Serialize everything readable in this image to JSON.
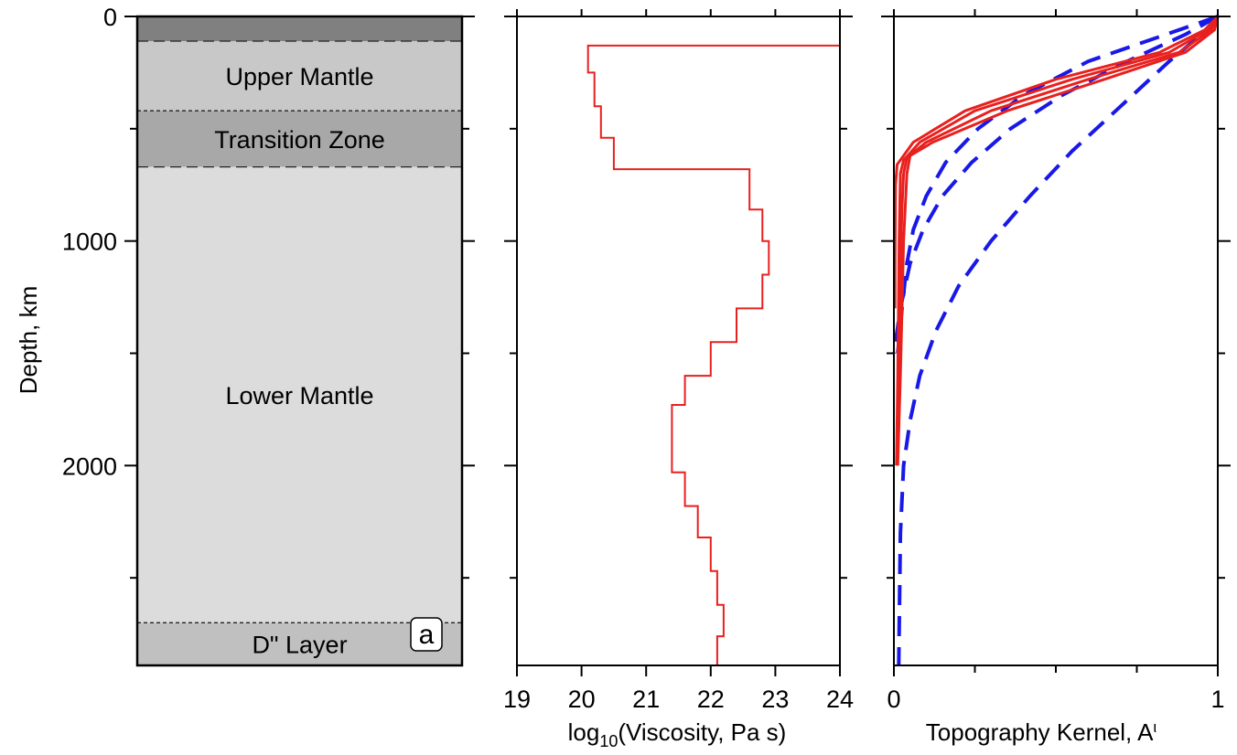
{
  "chart_data": [
    {
      "type": "table",
      "panel_label": "a",
      "ylabel": "Depth, km",
      "ylim": [
        0,
        2890
      ],
      "yticks": [
        "0",
        "1000",
        "2000"
      ],
      "layers": [
        {
          "name": "",
          "top": 0,
          "bottom": 110,
          "color": "#808080"
        },
        {
          "name": "Upper Mantle",
          "top": 110,
          "bottom": 420,
          "color": "#c8c8c8"
        },
        {
          "name": "Transition Zone",
          "top": 420,
          "bottom": 670,
          "color": "#a8a8a8"
        },
        {
          "name": "Lower Mantle",
          "top": 670,
          "bottom": 2700,
          "color": "#dcdcdc"
        },
        {
          "name": "D\" Layer",
          "top": 2700,
          "bottom": 2890,
          "color": "#c0c0c0"
        }
      ]
    },
    {
      "type": "line",
      "xlabel": "log",
      "xlabel_sub": "10",
      "xlabel_rest": "(Viscosity, Pa s)",
      "xlim": [
        19,
        24
      ],
      "xticks": [
        "19",
        "20",
        "21",
        "22",
        "23",
        "24"
      ],
      "ylim": [
        0,
        2890
      ],
      "x": [
        24,
        20.1,
        20.1,
        20.2,
        20.2,
        20.3,
        20.3,
        20.5,
        20.5,
        22.6,
        22.6,
        22.8,
        22.8,
        22.9,
        22.9,
        22.8,
        22.8,
        22.4,
        22.4,
        22.0,
        22.0,
        21.6,
        21.6,
        21.4,
        21.4,
        21.6,
        21.6,
        21.8,
        21.8,
        22.0,
        22.0,
        22.1,
        22.1,
        22.2,
        22.2,
        22.1,
        22.1
      ],
      "y": [
        130,
        130,
        250,
        250,
        400,
        400,
        540,
        540,
        680,
        680,
        860,
        860,
        1000,
        1000,
        1150,
        1150,
        1300,
        1300,
        1450,
        1450,
        1600,
        1600,
        1730,
        1730,
        2030,
        2030,
        2180,
        2180,
        2320,
        2320,
        2470,
        2470,
        2620,
        2620,
        2760,
        2760,
        2890
      ],
      "color": "#e8201e"
    },
    {
      "type": "line",
      "xlabel": "Topography Kernel, A",
      "xlabel_sup": "ι",
      "xlim": [
        0,
        1
      ],
      "xticks": [
        "0",
        "1"
      ],
      "ylim": [
        0,
        2890
      ],
      "solid_color": "#e8201e",
      "dashed_color": "#1818e8",
      "solid_series": [
        {
          "x": [
            1.0,
            0.97,
            0.85,
            0.55,
            0.25,
            0.08,
            0.03,
            0.02,
            0.018,
            0.016,
            0.014,
            0.012,
            0.008
          ],
          "y": [
            0,
            60,
            160,
            280,
            420,
            560,
            640,
            700,
            850,
            1000,
            1300,
            1600,
            2000
          ]
        },
        {
          "x": [
            1.0,
            0.98,
            0.88,
            0.6,
            0.3,
            0.1,
            0.04,
            0.03,
            0.025,
            0.022,
            0.018,
            0.015,
            0.01
          ],
          "y": [
            0,
            60,
            160,
            280,
            420,
            560,
            630,
            700,
            850,
            1000,
            1300,
            1600,
            2000
          ]
        },
        {
          "x": [
            1.0,
            0.99,
            0.9,
            0.65,
            0.35,
            0.12,
            0.05,
            0.04,
            0.035,
            0.03,
            0.025,
            0.02,
            0.012
          ],
          "y": [
            0,
            60,
            160,
            280,
            420,
            560,
            620,
            700,
            850,
            1000,
            1300,
            1600,
            2000
          ]
        },
        {
          "x": [
            1.0,
            0.96,
            0.82,
            0.5,
            0.22,
            0.06,
            0.01,
            0.005,
            0.004,
            0.003
          ],
          "y": [
            0,
            60,
            160,
            280,
            420,
            560,
            660,
            750,
            1000,
            1300
          ]
        }
      ],
      "dashed_series": [
        {
          "x": [
            1.0,
            0.9,
            0.72,
            0.52,
            0.36,
            0.24,
            0.15,
            0.09,
            0.05,
            0.02,
            0.0
          ],
          "y": [
            0,
            80,
            200,
            350,
            500,
            650,
            800,
            950,
            1100,
            1300,
            1500
          ]
        },
        {
          "x": [
            1.0,
            0.84,
            0.6,
            0.4,
            0.26,
            0.16,
            0.1,
            0.06,
            0.04,
            0.025,
            0.012
          ],
          "y": [
            0,
            80,
            200,
            350,
            500,
            650,
            800,
            950,
            1100,
            1300,
            1500
          ]
        },
        {
          "x": [
            1.0,
            0.95,
            0.85,
            0.7,
            0.55,
            0.42,
            0.3,
            0.2,
            0.13,
            0.08,
            0.05,
            0.03,
            0.02,
            0.015
          ],
          "y": [
            0,
            80,
            200,
            400,
            600,
            800,
            1000,
            1200,
            1400,
            1600,
            1800,
            2000,
            2300,
            2890
          ]
        }
      ]
    }
  ]
}
